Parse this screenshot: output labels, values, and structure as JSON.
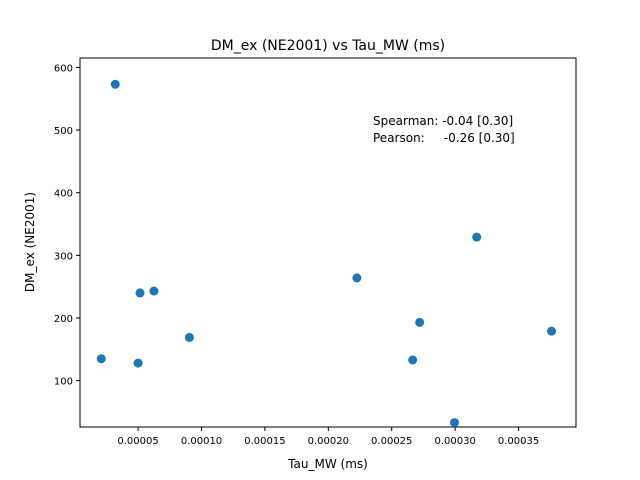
{
  "chart_data": {
    "type": "scatter",
    "title": "DM_ex (NE2001) vs Tau_MW (ms)",
    "xlabel": "Tau_MW (ms)",
    "ylabel": "DM_ex (NE2001)",
    "xlim": [
      4.2e-06,
      0.0003953
    ],
    "ylim": [
      26,
      615
    ],
    "x_ticks": [
      5e-05,
      0.0001,
      0.00015,
      0.0002,
      0.00025,
      0.0003,
      0.00035
    ],
    "x_tick_labels": [
      "0.00005",
      "0.00010",
      "0.00015",
      "0.00020",
      "0.00025",
      "0.00030",
      "0.00035"
    ],
    "y_ticks": [
      100,
      200,
      300,
      400,
      500,
      600
    ],
    "y_tick_labels": [
      "100",
      "200",
      "300",
      "400",
      "500",
      "600"
    ],
    "grid": false,
    "marker_color": "#1f77b4",
    "points": [
      {
        "x": 2.1e-05,
        "y": 135
      },
      {
        "x": 3.2e-05,
        "y": 573
      },
      {
        "x": 5e-05,
        "y": 128
      },
      {
        "x": 5.15e-05,
        "y": 240
      },
      {
        "x": 6.25e-05,
        "y": 243
      },
      {
        "x": 9.05e-05,
        "y": 169
      },
      {
        "x": 0.0002225,
        "y": 264
      },
      {
        "x": 0.0002665,
        "y": 133
      },
      {
        "x": 0.000272,
        "y": 193
      },
      {
        "x": 0.0002995,
        "y": 33
      },
      {
        "x": 0.000317,
        "y": 329
      },
      {
        "x": 0.000376,
        "y": 179
      }
    ],
    "annotations": [
      "Spearman: -0.04 [0.30]",
      "Pearson:     -0.26 [0.30]"
    ]
  }
}
